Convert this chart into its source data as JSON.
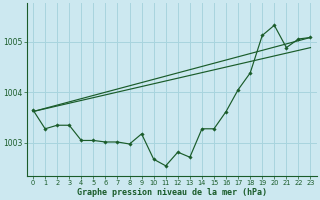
{
  "title": "Graphe pression niveau de la mer (hPa)",
  "bg_color": "#cce8f0",
  "grid_color": "#a8d4de",
  "line_color": "#1a5c2a",
  "xlim": [
    -0.5,
    23.5
  ],
  "ylim": [
    1002.35,
    1005.75
  ],
  "yticks": [
    1003,
    1004,
    1005
  ],
  "xticks": [
    0,
    1,
    2,
    3,
    4,
    5,
    6,
    7,
    8,
    9,
    10,
    11,
    12,
    13,
    14,
    15,
    16,
    17,
    18,
    19,
    20,
    21,
    22,
    23
  ],
  "data_x": [
    0,
    1,
    2,
    3,
    4,
    5,
    6,
    7,
    8,
    9,
    10,
    11,
    12,
    13,
    14,
    15,
    16,
    17,
    18,
    19,
    20,
    21,
    22,
    23
  ],
  "data_y": [
    1003.65,
    1003.28,
    1003.35,
    1003.35,
    1003.05,
    1003.05,
    1003.02,
    1003.02,
    1002.98,
    1003.18,
    1002.68,
    1002.55,
    1002.82,
    1002.72,
    1003.28,
    1003.28,
    1003.62,
    1004.05,
    1004.38,
    1005.12,
    1005.32,
    1004.88,
    1005.05,
    1005.08
  ],
  "trend1_x": [
    0,
    23
  ],
  "trend1_y": [
    1003.62,
    1005.08
  ],
  "trend2_x": [
    0,
    23
  ],
  "trend2_y": [
    1003.62,
    1004.88
  ]
}
